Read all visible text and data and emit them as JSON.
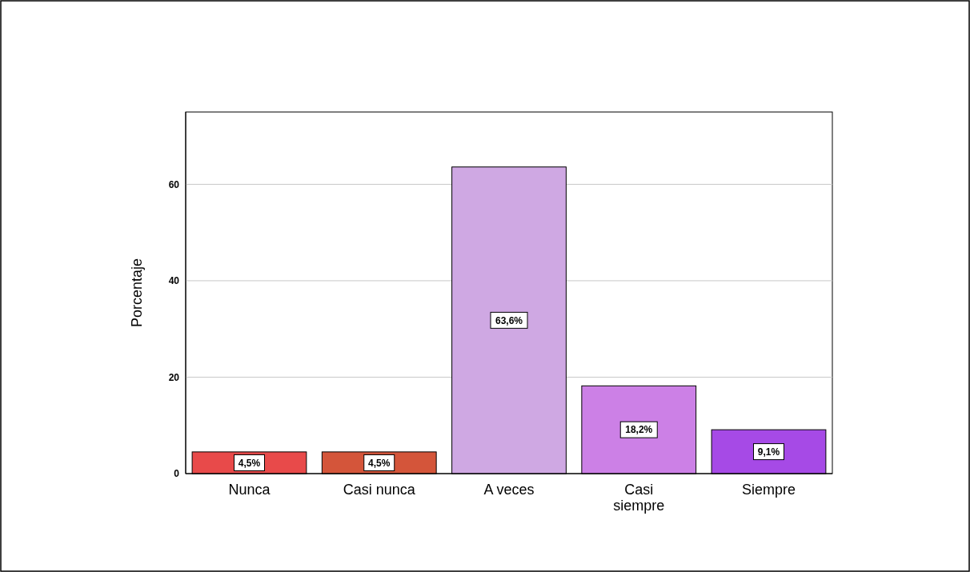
{
  "chart_data": {
    "type": "bar",
    "ylabel": "Porcentaje",
    "categories": [
      "Nunca",
      "Casi nunca",
      "A veces",
      "Casi siempre",
      "Siempre"
    ],
    "values": [
      4.5,
      4.5,
      63.6,
      18.2,
      9.1
    ],
    "colors": [
      "#e84a4a",
      "#d4553a",
      "#cfa8e3",
      "#cc80e6",
      "#a64ae6"
    ],
    "value_labels": [
      "4,5%",
      "4,5%",
      "63,6%",
      "18,2%",
      "9,1%"
    ],
    "ylim": [
      0,
      75
    ],
    "yticks": [
      0,
      20,
      40,
      60
    ],
    "grid": "y"
  }
}
